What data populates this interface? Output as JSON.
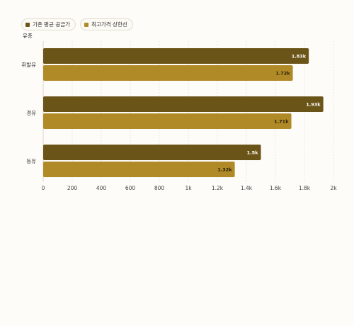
{
  "chart_data": {
    "type": "bar",
    "orientation": "horizontal",
    "ylabel": "유종",
    "categories": [
      "휘발유",
      "경유",
      "등유"
    ],
    "series": [
      {
        "name": "기존 평균 공급가",
        "color": "#6b5418",
        "values": [
          1830,
          1930,
          1500
        ],
        "labels": [
          "1.83k",
          "1.93k",
          "1.5k"
        ]
      },
      {
        "name": "최고가격 상한선",
        "color": "#b08a26",
        "values": [
          1720,
          1710,
          1320
        ],
        "labels": [
          "1.72k",
          "1.71k",
          "1.32k"
        ]
      }
    ],
    "xlim": [
      0,
      2000
    ],
    "xticks": [
      {
        "value": 0,
        "label": "0"
      },
      {
        "value": 200,
        "label": "200"
      },
      {
        "value": 400,
        "label": "400"
      },
      {
        "value": 600,
        "label": "600"
      },
      {
        "value": 800,
        "label": "800"
      },
      {
        "value": 1000,
        "label": "1k"
      },
      {
        "value": 1200,
        "label": "1.2k"
      },
      {
        "value": 1400,
        "label": "1.4k"
      },
      {
        "value": 1600,
        "label": "1.6k"
      },
      {
        "value": 1800,
        "label": "1.8k"
      },
      {
        "value": 2000,
        "label": "2k"
      }
    ],
    "grid": true,
    "legend_position": "top-left"
  }
}
